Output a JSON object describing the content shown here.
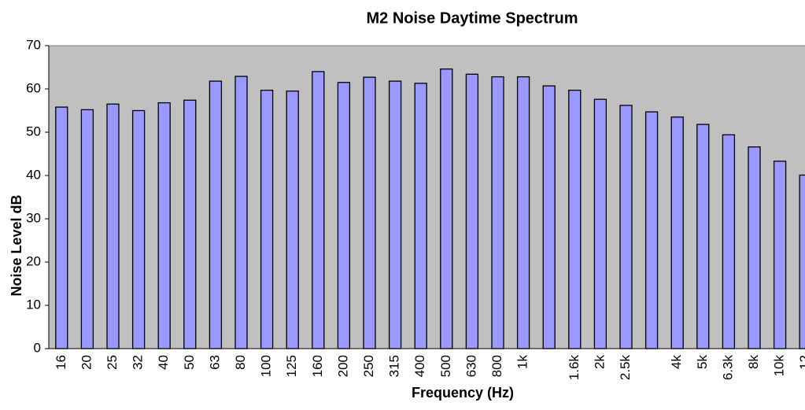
{
  "chart_data": {
    "type": "bar",
    "title": "M2 Noise Daytime Spectrum",
    "x_label": "Frequency (Hz)",
    "y_label": "Noise Level dB",
    "categories": [
      "16",
      "20",
      "25",
      "32",
      "40",
      "50",
      "63",
      "80",
      "100",
      "125",
      "160",
      "200",
      "250",
      "315",
      "400",
      "500",
      "630",
      "800",
      "1k",
      null,
      "1.6k",
      "2k",
      "2.5k",
      null,
      "4k",
      "5k",
      "6.3k",
      "8k",
      "10k",
      "12"
    ],
    "values": [
      55.8,
      55.2,
      56.5,
      55,
      56.8,
      57.4,
      61.8,
      62.9,
      59.7,
      59.5,
      64,
      61.5,
      62.7,
      61.8,
      61.3,
      64.6,
      63.4,
      62.8,
      62.8,
      60.7,
      59.7,
      57.6,
      56.2,
      54.7,
      53.5,
      51.8,
      49.4,
      46.6,
      43.3,
      40.1
    ],
    "color": "#9999ff",
    "plot_background": "#c0c0c0",
    "ylim": [
      0,
      70
    ],
    "yticks": [
      0,
      10,
      20,
      30,
      40,
      50,
      60,
      70
    ],
    "grid": false
  }
}
